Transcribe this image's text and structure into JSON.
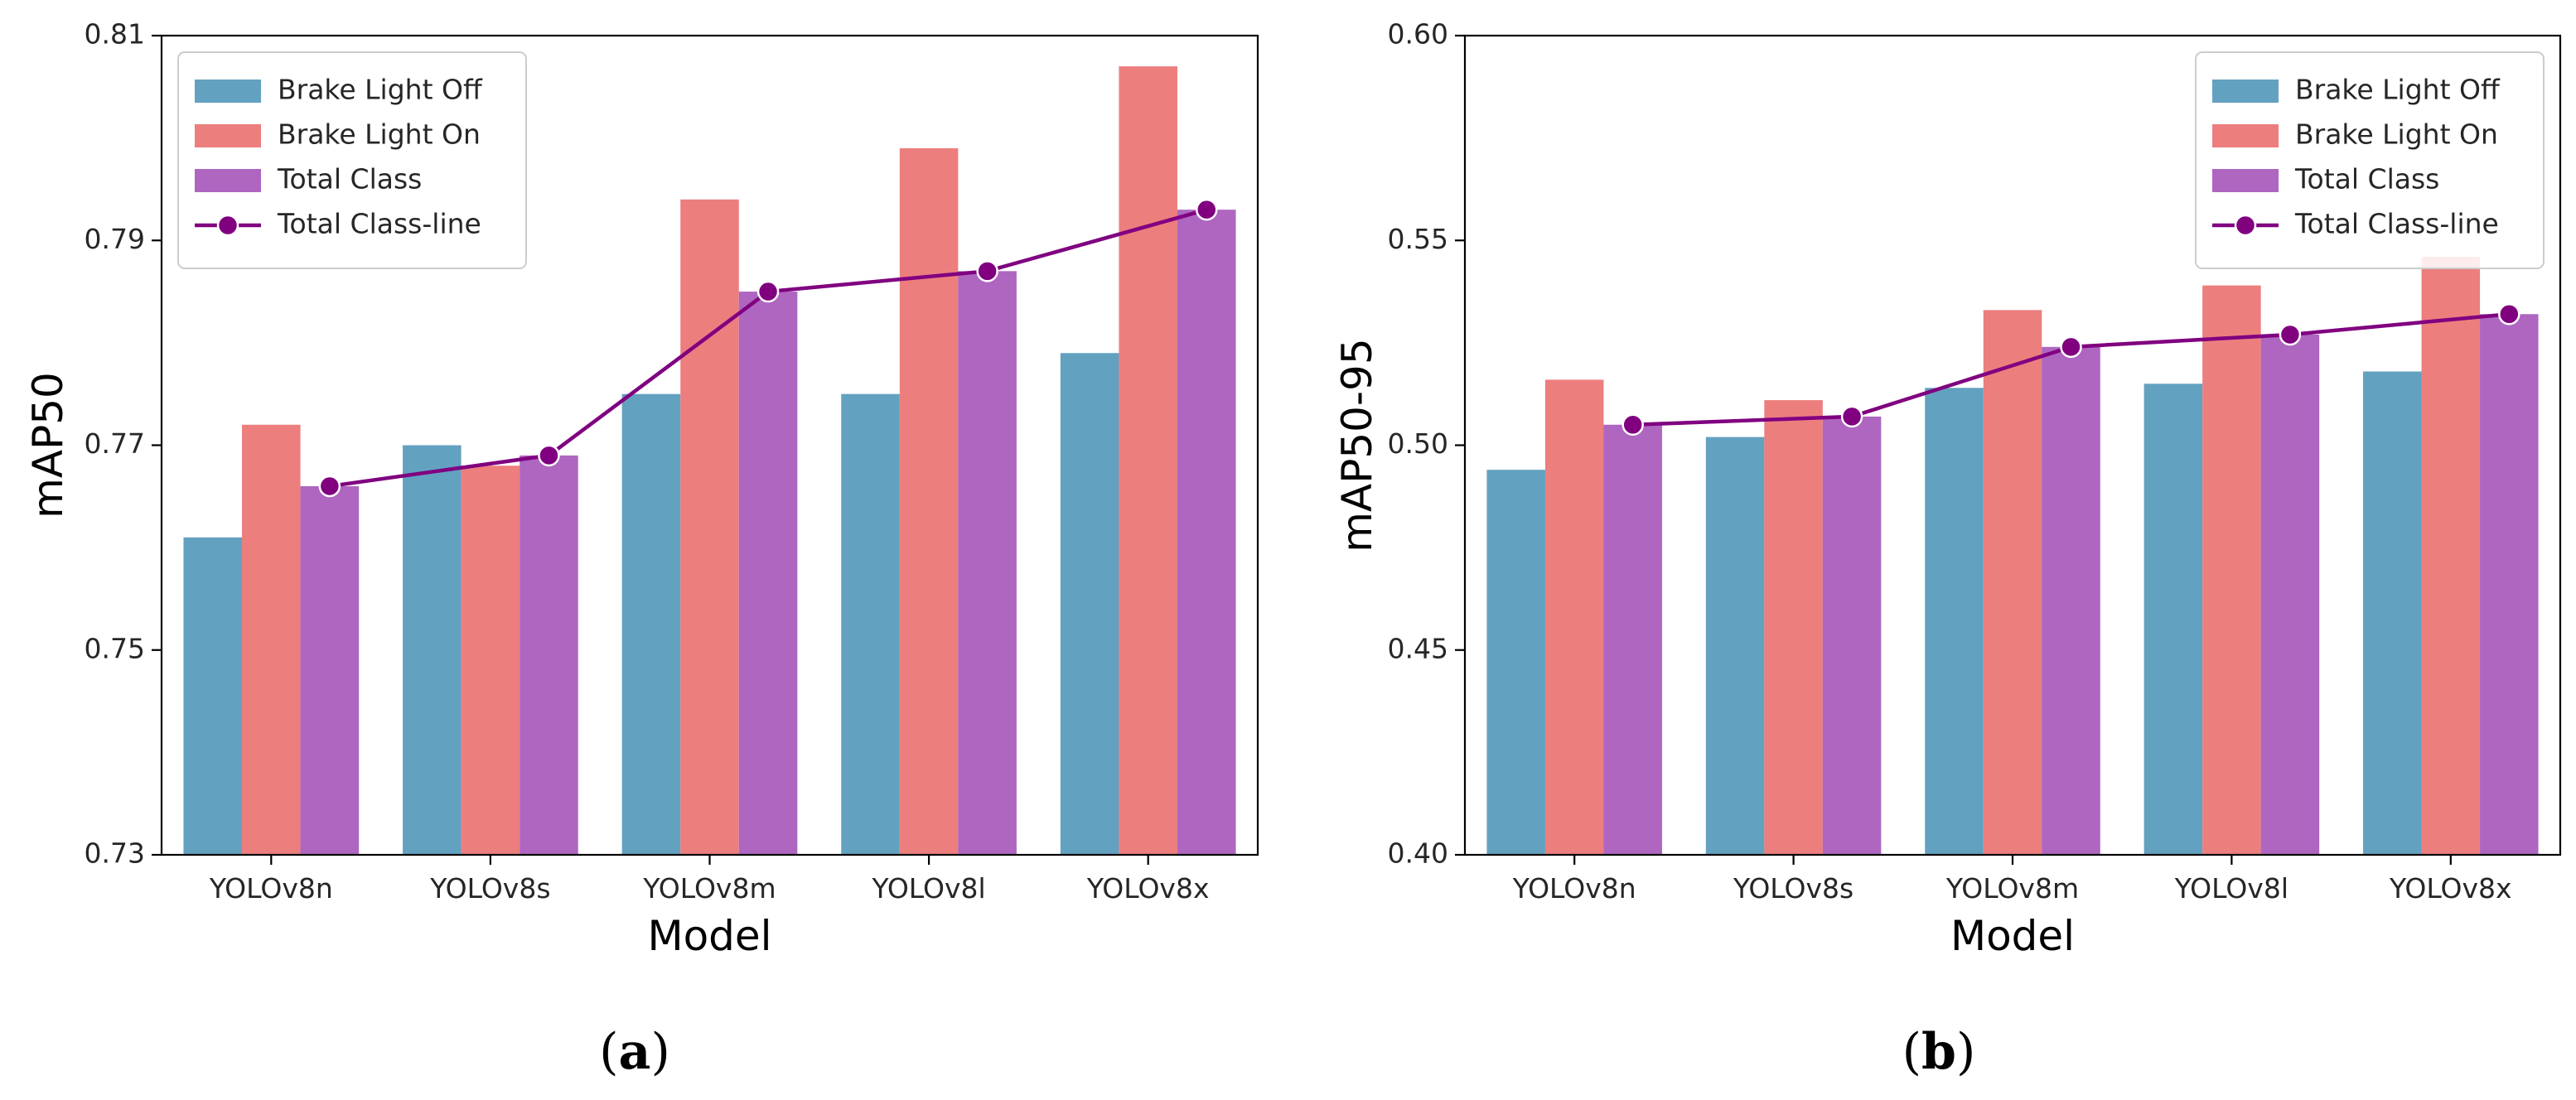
{
  "chart_data": [
    {
      "type": "bar",
      "panel_label": "a",
      "categories": [
        "YOLOv8n",
        "YOLOv8s",
        "YOLOv8m",
        "YOLOv8l",
        "YOLOv8x"
      ],
      "series": [
        {
          "name": "Brake Light Off",
          "color": "#63a1c0",
          "values": [
            0.761,
            0.77,
            0.775,
            0.775,
            0.779
          ]
        },
        {
          "name": "Brake Light On",
          "color": "#ec7e7e",
          "values": [
            0.772,
            0.768,
            0.794,
            0.799,
            0.807
          ]
        },
        {
          "name": "Total Class",
          "color": "#ae66c1",
          "values": [
            0.766,
            0.769,
            0.785,
            0.787,
            0.793
          ]
        }
      ],
      "line": {
        "name": "Total Class-line",
        "color": "#800080",
        "values": [
          0.766,
          0.769,
          0.785,
          0.787,
          0.793
        ]
      },
      "xlabel": "Model",
      "ylabel": "mAP50",
      "ylim": [
        0.73,
        0.81
      ],
      "yticks": [
        0.73,
        0.75,
        0.77,
        0.79,
        0.81
      ],
      "ytick_labels": [
        "0.73",
        "0.75",
        "0.77",
        "0.79",
        "0.81"
      ],
      "legend": "top-left",
      "grid": false
    },
    {
      "type": "bar",
      "panel_label": "b",
      "categories": [
        "YOLOv8n",
        "YOLOv8s",
        "YOLOv8m",
        "YOLOv8l",
        "YOLOv8x"
      ],
      "series": [
        {
          "name": "Brake Light Off",
          "color": "#63a1c0",
          "values": [
            0.494,
            0.502,
            0.514,
            0.515,
            0.518
          ]
        },
        {
          "name": "Brake Light On",
          "color": "#ec7e7e",
          "values": [
            0.516,
            0.511,
            0.533,
            0.539,
            0.546
          ]
        },
        {
          "name": "Total Class",
          "color": "#ae66c1",
          "values": [
            0.505,
            0.507,
            0.524,
            0.527,
            0.532
          ]
        }
      ],
      "line": {
        "name": "Total Class-line",
        "color": "#800080",
        "values": [
          0.505,
          0.507,
          0.524,
          0.527,
          0.532
        ]
      },
      "xlabel": "Model",
      "ylabel": "mAP50-95",
      "ylim": [
        0.4,
        0.6
      ],
      "yticks": [
        0.4,
        0.45,
        0.5,
        0.55,
        0.6
      ],
      "ytick_labels": [
        "0.40",
        "0.45",
        "0.50",
        "0.55",
        "0.60"
      ],
      "legend": "top-right",
      "grid": false
    }
  ]
}
